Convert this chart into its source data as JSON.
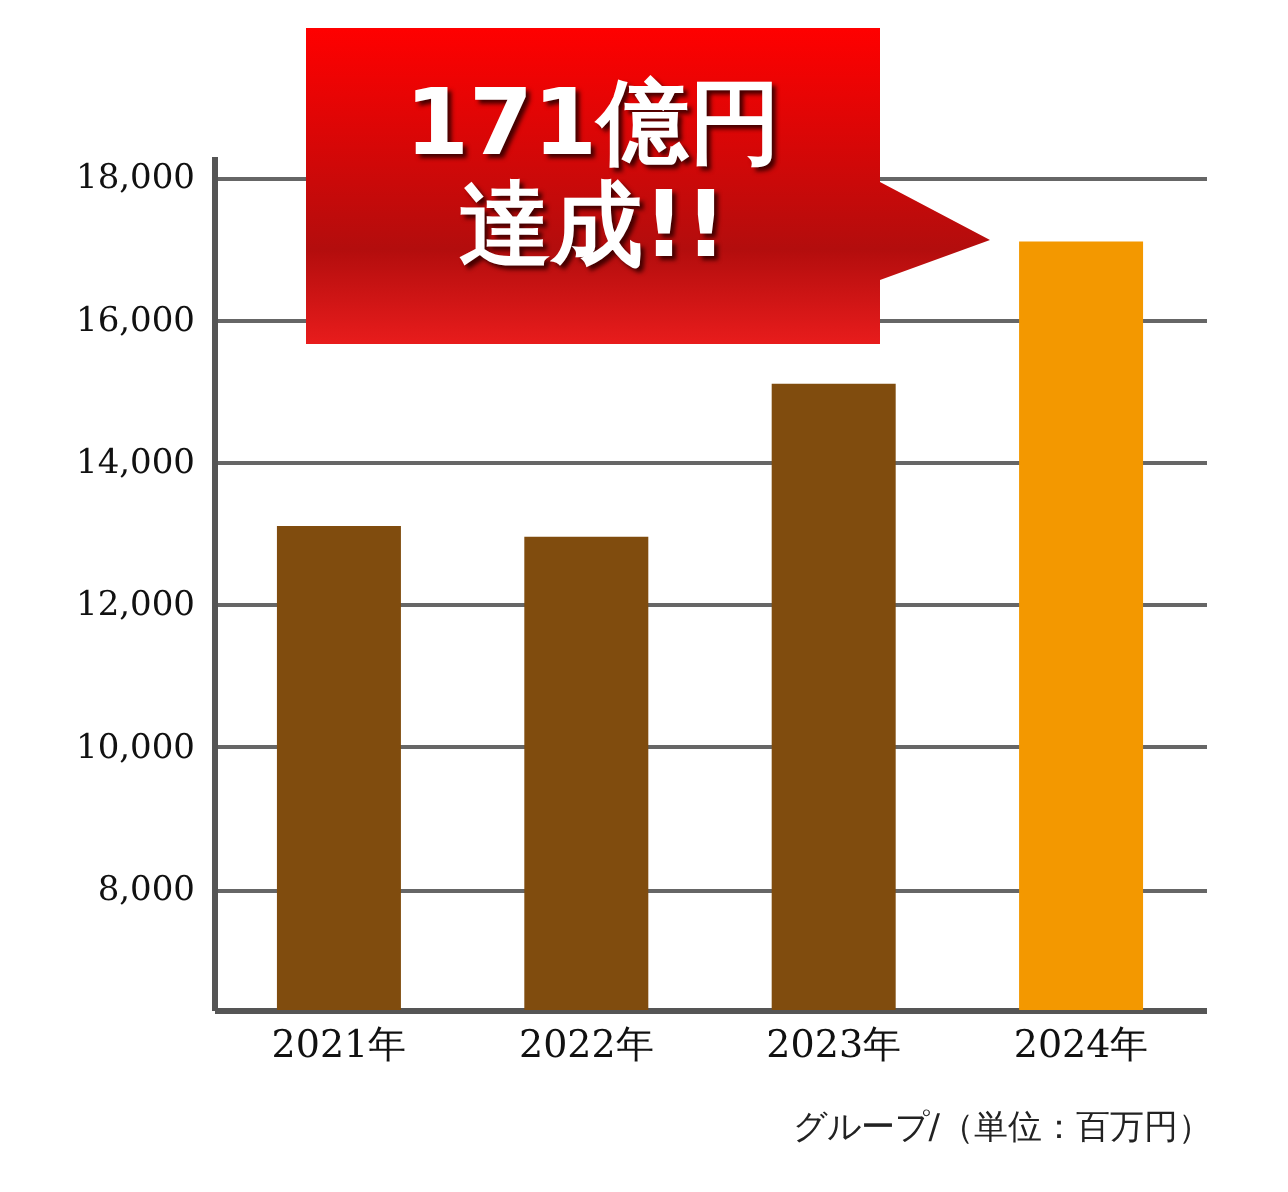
{
  "chart_data": {
    "type": "bar",
    "categories": [
      "2021年",
      "2022年",
      "2023年",
      "2024年"
    ],
    "values": [
      13100,
      12950,
      15100,
      17100
    ],
    "colors": [
      "#804c0e",
      "#804c0e",
      "#804c0e",
      "#f39800"
    ],
    "ylim": [
      6300,
      18300
    ],
    "yticks": [
      {
        "value": 8000,
        "label": "8,000"
      },
      {
        "value": 10000,
        "label": "10,000"
      },
      {
        "value": 12000,
        "label": "12,000"
      },
      {
        "value": 14000,
        "label": "14,000"
      },
      {
        "value": 16000,
        "label": "16,000"
      },
      {
        "value": 18000,
        "label": "18,000"
      }
    ],
    "grid": "y",
    "annotations": [
      "171億円達成!!",
      "グループ/（単位：百万円）"
    ]
  }
}
